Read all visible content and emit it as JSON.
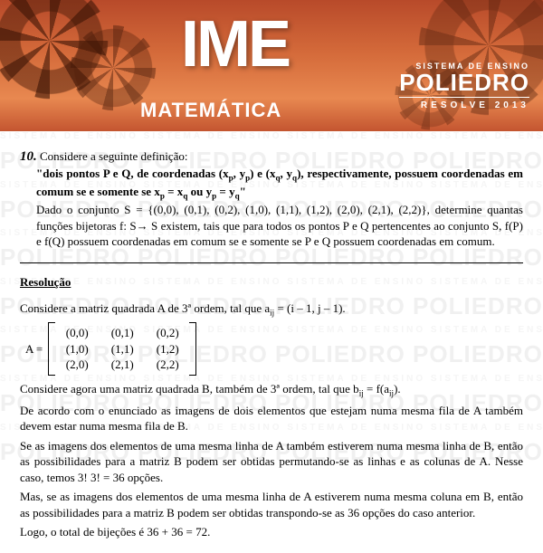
{
  "header": {
    "title": "IME",
    "subject": "MATEMÁTICA",
    "brand_system": "SISTEMA DE ENSINO",
    "brand_name": "POLIEDRO",
    "brand_resolve": "RESOLVE 2013",
    "bg_gradient_colors": [
      "#b84a2a",
      "#d46a3a",
      "#e88850",
      "#c45530"
    ],
    "title_color": "#ffffff"
  },
  "watermark": {
    "main": "POLIEDRO POLIEDRO POLIEDRO POLIEDRO",
    "sub": "SISTEMA DE ENSINO SISTEMA DE ENSINO SISTEMA DE ENSINO SISTEMA DE ENSINO",
    "color_main": "#f0f0f0",
    "color_sub": "#f5f5f5"
  },
  "question": {
    "number": "10.",
    "intro": "Considere a seguinte definição:",
    "definition": "\"dois pontos P e Q, de coordenadas (xp, yp) e (xq, yq), respectivamente, possuem coordenadas em comum se e somente se xp = xq ou yp = yq\"",
    "given": "Dado o conjunto S = {(0,0), (0,1), (0,2), (1,0), (1,1), (1,2), (2,0), (2,1), (2,2)}, determine quantas funções bijetoras f: S→ S existem, tais que para todos os pontos P e Q pertencentes ao conjunto S, f(P) e f(Q) possuem coordenadas em comum se e somente se P e Q possuem coordenadas em comum."
  },
  "solution": {
    "title": "Resolução",
    "line1": "Considere a matriz quadrada A de 3ª ordem, tal que aij = (i – 1, j – 1).",
    "matrix_label": "A =",
    "matrix": {
      "rows": [
        [
          "(0,0)",
          "(0,1)",
          "(0,2)"
        ],
        [
          "(1,0)",
          "(1,1)",
          "(1,2)"
        ],
        [
          "(2,0)",
          "(2,1)",
          "(2,2)"
        ]
      ]
    },
    "line2": "Considere agora uma matriz quadrada B, também de 3ª ordem, tal que bij = f(aij).",
    "line3": "De acordo com o enunciado as imagens de dois elementos que estejam numa mesma fila de A também devem estar numa mesma fila de B.",
    "line4": "Se as imagens dos elementos de uma mesma linha de A também estiverem numa mesma linha de B, então as possibilidades para a matriz B podem ser obtidas permutando-se as linhas e as colunas de A. Nesse caso, temos 3! 3! = 36 opções.",
    "line5": "Mas, se as imagens dos elementos de uma mesma linha de A estiverem numa mesma coluna em B, então as possibilidades para a matriz B podem ser obtidas transpondo-se as 36 opções do caso anterior.",
    "line6": "Logo, o total de bijeções é 36 + 36 = 72."
  },
  "colors": {
    "text": "#000000",
    "background": "#ffffff"
  }
}
